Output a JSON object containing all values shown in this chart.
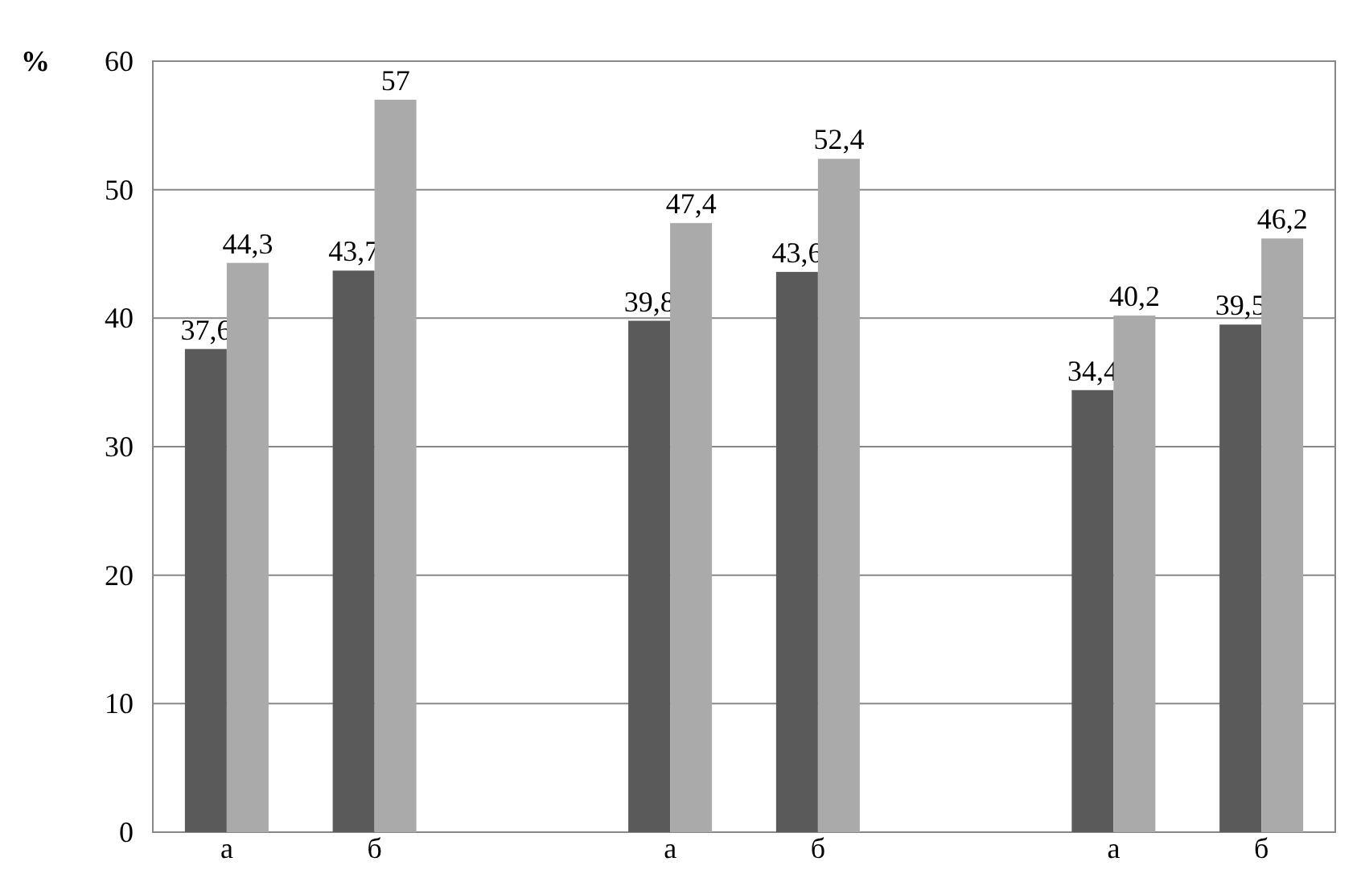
{
  "chart_data": {
    "type": "bar",
    "ylabel": "%",
    "categories": [
      "а",
      "б",
      null,
      "а",
      "б",
      null,
      "а",
      "б"
    ],
    "series": [
      {
        "color": "#5a5a5a",
        "values": [
          37.6,
          43.7,
          null,
          39.8,
          43.6,
          null,
          34.4,
          39.5
        ],
        "value_labels": [
          "37,6",
          "43,7",
          null,
          "39,8",
          "43,6",
          null,
          "34,4",
          "39,5"
        ]
      },
      {
        "color": "#aaaaaa",
        "values": [
          44.3,
          57,
          null,
          47.4,
          52.4,
          null,
          40.2,
          46.2
        ],
        "value_labels": [
          "44,3",
          "57",
          null,
          "47,4",
          "52,4",
          null,
          "40,2",
          "46,2"
        ]
      }
    ],
    "ylim": [
      0,
      60
    ],
    "yticks": [
      0,
      10,
      20,
      30,
      40,
      50,
      60
    ],
    "grid": "y"
  }
}
